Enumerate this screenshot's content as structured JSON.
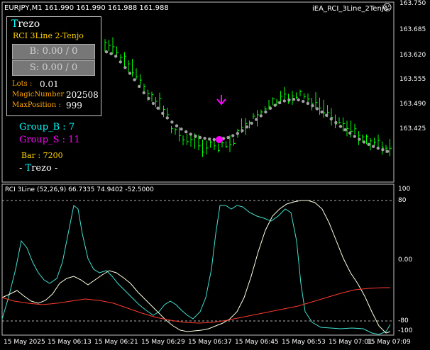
{
  "header": {
    "symbol_info": "EURJPY,M1  161.990 161.990 161.988 161.988",
    "indicator_name": "iEA_RCI_3Line_2Tenjo",
    "smiley": "☺"
  },
  "panel": {
    "title": "Trezo",
    "subtitle": "RCI 3Line 2-Tenjo",
    "buy_button": "B: 0.00  /  0",
    "sell_button": "S: 0.00  /  0",
    "lots_label": "Lots :",
    "lots_value": "0.01",
    "magic_label": "MagicNumber :",
    "magic_value": "202508",
    "maxpos_label": "MaxPosition :",
    "maxpos_value": "999"
  },
  "groups": {
    "group_b": "Group_B : 7",
    "group_s": "Group_S : 11",
    "bar": "Bar : 7200",
    "footer": "- Trezo -"
  },
  "price_axis": [
    "163.750",
    "163.685",
    "163.620",
    "163.555",
    "163.490",
    "163.425"
  ],
  "subwindow": {
    "title": "RCI 3Line (52,26,9) 66.7335 74.9402 -52.5000",
    "levels": [
      "100",
      "80",
      "0.00",
      "-80",
      "-100"
    ]
  },
  "time_axis": [
    "15 May 2025",
    "15 May 06:13",
    "15 May 06:21",
    "15 May 06:29",
    "15 May 06:37",
    "15 May 06:45",
    "15 May 06:53",
    "15 May 07:01",
    "15 May 07:09"
  ],
  "colors": {
    "candle": "#00ff00",
    "dots": "#a0a0a0",
    "arrow": "#ff00ff",
    "rci_fast": "#40e0d0",
    "rci_mid": "#ffffe0",
    "rci_slow": "#ff3b2f",
    "orange_text": "#ffa500",
    "cyan_text": "#00ffff",
    "magenta_text": "#ff00ff"
  }
}
